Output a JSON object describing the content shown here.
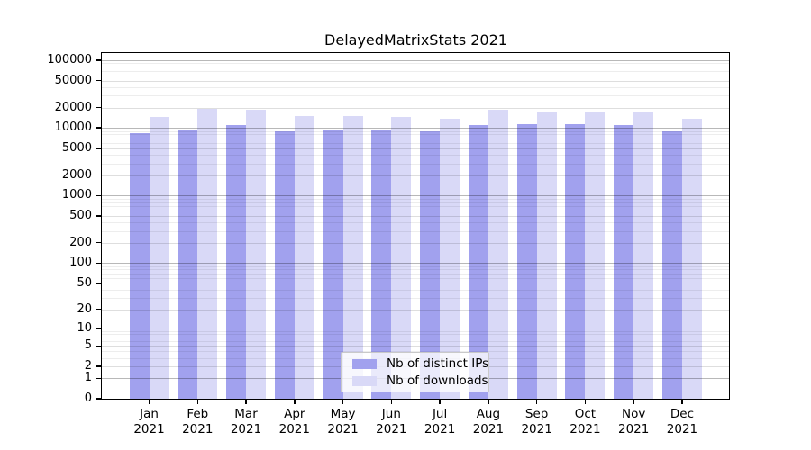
{
  "chart_data": {
    "type": "bar",
    "title": "DelayedMatrixStats 2021",
    "year_label": "2021",
    "categories": [
      "Jan",
      "Feb",
      "Mar",
      "Apr",
      "May",
      "Jun",
      "Jul",
      "Aug",
      "Sep",
      "Oct",
      "Nov",
      "Dec"
    ],
    "series": [
      {
        "name": "Nb of distinct IPs",
        "color": "#a1a1ee",
        "values": [
          8500,
          9300,
          11100,
          8800,
          9100,
          9200,
          8800,
          11100,
          11300,
          11500,
          11000,
          8800
        ]
      },
      {
        "name": "Nb of downloads",
        "color": "#d9d9f7",
        "values": [
          14700,
          19100,
          18300,
          15100,
          14800,
          14700,
          13800,
          18500,
          16700,
          16700,
          16700,
          13700
        ]
      }
    ],
    "yscale": "log1p",
    "ylim": [
      0,
      100000
    ],
    "y_tick_labels": [
      0,
      1,
      2,
      5,
      10,
      20,
      50,
      100,
      200,
      500,
      1000,
      2000,
      5000,
      10000,
      20000,
      50000,
      100000
    ],
    "grid": "horizontal",
    "legend_position": "bottom-center-inside",
    "xlabel": "",
    "ylabel": ""
  }
}
